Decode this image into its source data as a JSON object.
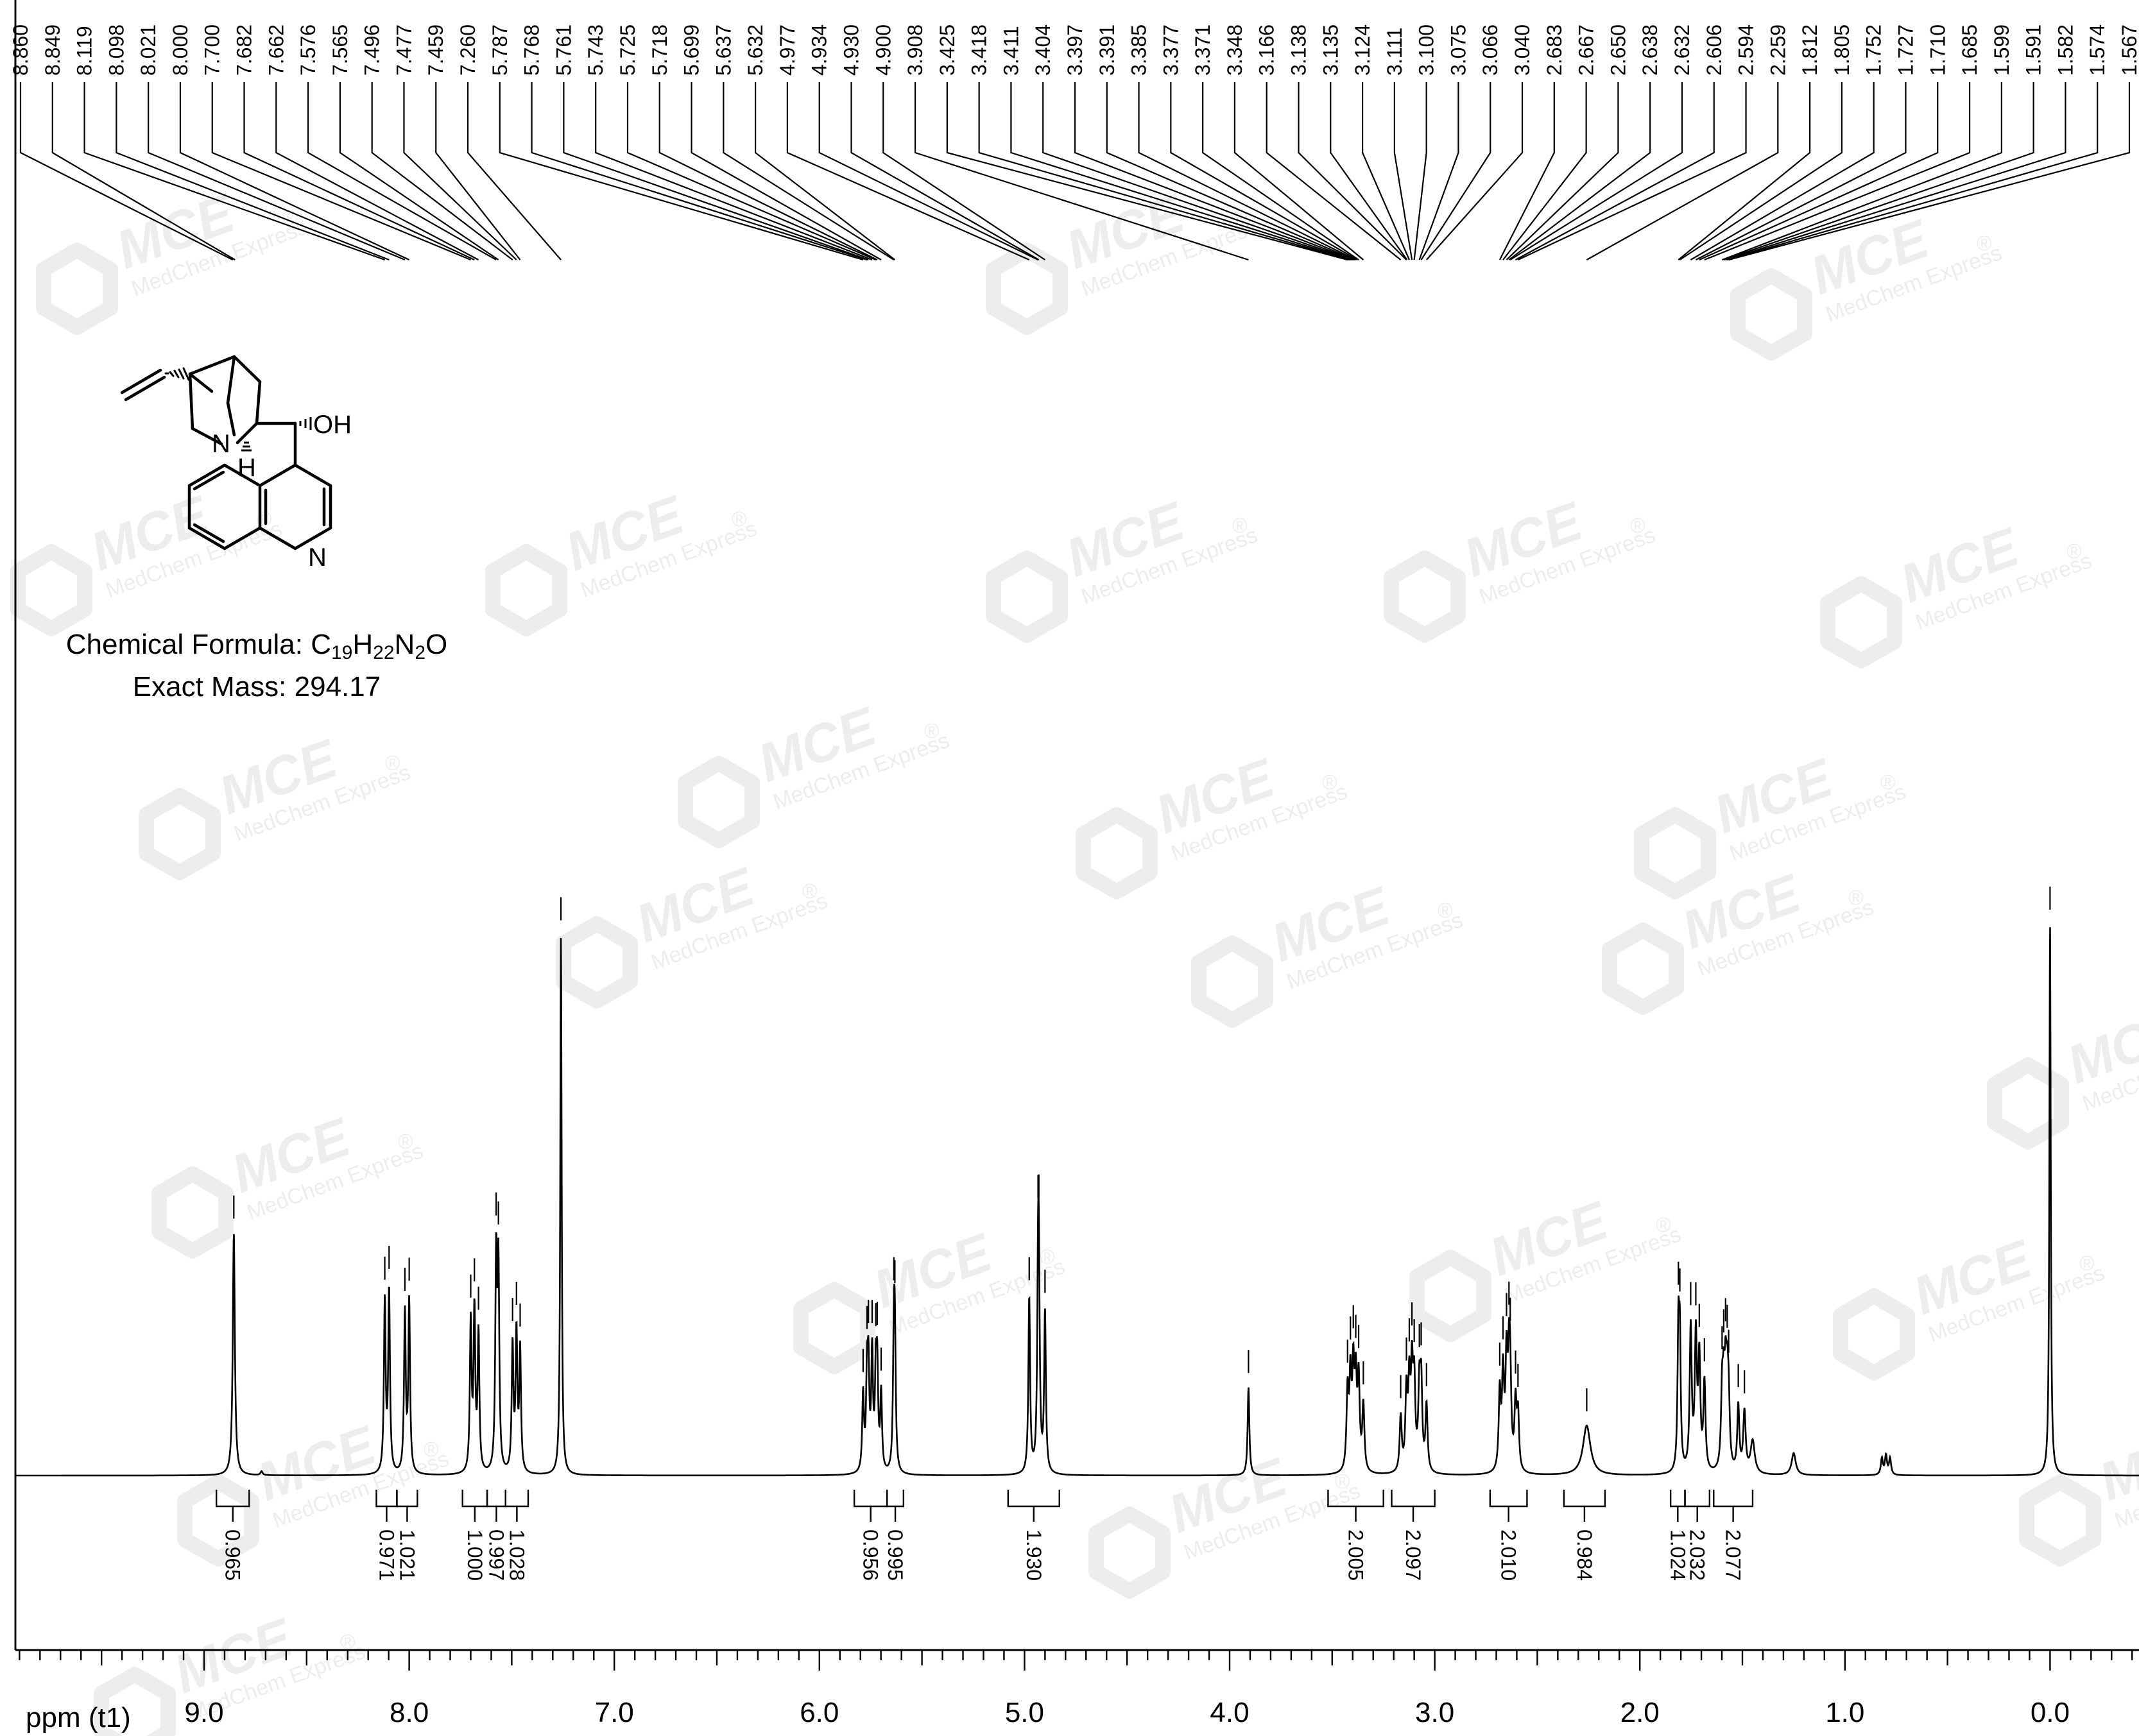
{
  "chart_data": {
    "type": "line",
    "title": "",
    "xlabel": "ppm (t1)",
    "ylabel": "",
    "xlim": [
      10.0,
      -0.45
    ],
    "x_ticks": [
      {
        "value": 9.0,
        "label": "9.0"
      },
      {
        "value": 8.0,
        "label": "8.0"
      },
      {
        "value": 7.0,
        "label": "7.0"
      },
      {
        "value": 6.0,
        "label": "6.0"
      },
      {
        "value": 5.0,
        "label": "5.0"
      },
      {
        "value": 4.0,
        "label": "4.0"
      },
      {
        "value": 3.0,
        "label": "3.0"
      },
      {
        "value": 2.0,
        "label": "2.0"
      },
      {
        "value": 1.0,
        "label": "1.0"
      },
      {
        "value": 0.0,
        "label": "0.0"
      }
    ],
    "peak_labels": [
      "8.860",
      "8.849",
      "8.119",
      "8.098",
      "8.021",
      "8.000",
      "7.700",
      "7.682",
      "7.662",
      "7.576",
      "7.565",
      "7.496",
      "7.477",
      "7.459",
      "7.260",
      "5.787",
      "5.768",
      "5.761",
      "5.743",
      "5.725",
      "5.718",
      "5.699",
      "5.637",
      "5.632",
      "4.977",
      "4.934",
      "4.930",
      "4.900",
      "3.908",
      "3.425",
      "3.418",
      "3.411",
      "3.404",
      "3.397",
      "3.391",
      "3.385",
      "3.377",
      "3.371",
      "3.348",
      "3.166",
      "3.138",
      "3.135",
      "3.124",
      "3.111",
      "3.100",
      "3.075",
      "3.066",
      "3.040",
      "2.683",
      "2.667",
      "2.650",
      "2.638",
      "2.632",
      "2.606",
      "2.594",
      "2.259",
      "1.812",
      "1.805",
      "1.752",
      "1.727",
      "1.710",
      "1.685",
      "1.599",
      "1.591",
      "1.582",
      "1.574",
      "1.567"
    ],
    "peaks": [
      {
        "ppm": 8.855,
        "height": 0.44,
        "width": 0.006
      },
      {
        "ppm": 8.72,
        "height": 0.007,
        "width": 0.006
      },
      {
        "ppm": 8.119,
        "height": 0.31,
        "width": 0.005
      },
      {
        "ppm": 8.098,
        "height": 0.33,
        "width": 0.005
      },
      {
        "ppm": 8.021,
        "height": 0.29,
        "width": 0.005
      },
      {
        "ppm": 8.0,
        "height": 0.31,
        "width": 0.005
      },
      {
        "ppm": 7.7,
        "height": 0.27,
        "width": 0.005
      },
      {
        "ppm": 7.682,
        "height": 0.29,
        "width": 0.005
      },
      {
        "ppm": 7.662,
        "height": 0.25,
        "width": 0.005
      },
      {
        "ppm": 7.576,
        "height": 0.38,
        "width": 0.005
      },
      {
        "ppm": 7.565,
        "height": 0.36,
        "width": 0.005
      },
      {
        "ppm": 7.496,
        "height": 0.23,
        "width": 0.005
      },
      {
        "ppm": 7.477,
        "height": 0.25,
        "width": 0.005
      },
      {
        "ppm": 7.459,
        "height": 0.22,
        "width": 0.005
      },
      {
        "ppm": 7.26,
        "height": 0.98,
        "width": 0.004
      },
      {
        "ppm": 5.787,
        "height": 0.14,
        "width": 0.005
      },
      {
        "ppm": 5.768,
        "height": 0.16,
        "width": 0.005
      },
      {
        "ppm": 5.761,
        "height": 0.17,
        "width": 0.005
      },
      {
        "ppm": 5.743,
        "height": 0.21,
        "width": 0.005
      },
      {
        "ppm": 5.725,
        "height": 0.16,
        "width": 0.005
      },
      {
        "ppm": 5.718,
        "height": 0.17,
        "width": 0.005
      },
      {
        "ppm": 5.699,
        "height": 0.14,
        "width": 0.005
      },
      {
        "ppm": 5.637,
        "height": 0.22,
        "width": 0.005
      },
      {
        "ppm": 5.632,
        "height": 0.21,
        "width": 0.005
      },
      {
        "ppm": 4.977,
        "height": 0.32,
        "width": 0.005
      },
      {
        "ppm": 4.934,
        "height": 0.29,
        "width": 0.005
      },
      {
        "ppm": 4.93,
        "height": 0.29,
        "width": 0.005
      },
      {
        "ppm": 4.9,
        "height": 0.29,
        "width": 0.005
      },
      {
        "ppm": 3.908,
        "height": 0.16,
        "width": 0.005
      },
      {
        "ppm": 3.425,
        "height": 0.14,
        "width": 0.006
      },
      {
        "ppm": 3.411,
        "height": 0.16,
        "width": 0.006
      },
      {
        "ppm": 3.397,
        "height": 0.17,
        "width": 0.006
      },
      {
        "ppm": 3.385,
        "height": 0.15,
        "width": 0.006
      },
      {
        "ppm": 3.371,
        "height": 0.16,
        "width": 0.006
      },
      {
        "ppm": 3.348,
        "height": 0.12,
        "width": 0.006
      },
      {
        "ppm": 3.166,
        "height": 0.1,
        "width": 0.006
      },
      {
        "ppm": 3.138,
        "height": 0.14,
        "width": 0.006
      },
      {
        "ppm": 3.124,
        "height": 0.15,
        "width": 0.006
      },
      {
        "ppm": 3.111,
        "height": 0.17,
        "width": 0.006
      },
      {
        "ppm": 3.1,
        "height": 0.15,
        "width": 0.006
      },
      {
        "ppm": 3.075,
        "height": 0.14,
        "width": 0.006
      },
      {
        "ppm": 3.066,
        "height": 0.15,
        "width": 0.006
      },
      {
        "ppm": 3.04,
        "height": 0.12,
        "width": 0.006
      },
      {
        "ppm": 2.683,
        "height": 0.14,
        "width": 0.006
      },
      {
        "ppm": 2.667,
        "height": 0.17,
        "width": 0.006
      },
      {
        "ppm": 2.65,
        "height": 0.19,
        "width": 0.006
      },
      {
        "ppm": 2.638,
        "height": 0.16,
        "width": 0.006
      },
      {
        "ppm": 2.632,
        "height": 0.14,
        "width": 0.006
      },
      {
        "ppm": 2.606,
        "height": 0.12,
        "width": 0.006
      },
      {
        "ppm": 2.594,
        "height": 0.1,
        "width": 0.006
      },
      {
        "ppm": 2.259,
        "height": 0.09,
        "width": 0.022
      },
      {
        "ppm": 1.812,
        "height": 0.24,
        "width": 0.005
      },
      {
        "ppm": 1.805,
        "height": 0.22,
        "width": 0.005
      },
      {
        "ppm": 1.752,
        "height": 0.26,
        "width": 0.006
      },
      {
        "ppm": 1.727,
        "height": 0.24,
        "width": 0.006
      },
      {
        "ppm": 1.71,
        "height": 0.2,
        "width": 0.006
      },
      {
        "ppm": 1.685,
        "height": 0.16,
        "width": 0.006
      },
      {
        "ppm": 1.599,
        "height": 0.13,
        "width": 0.006
      },
      {
        "ppm": 1.591,
        "height": 0.12,
        "width": 0.006
      },
      {
        "ppm": 1.582,
        "height": 0.14,
        "width": 0.006
      },
      {
        "ppm": 1.574,
        "height": 0.12,
        "width": 0.006
      },
      {
        "ppm": 1.567,
        "height": 0.11,
        "width": 0.006
      },
      {
        "ppm": 1.52,
        "height": 0.12,
        "width": 0.006
      },
      {
        "ppm": 1.49,
        "height": 0.11,
        "width": 0.007
      },
      {
        "ppm": 1.45,
        "height": 0.06,
        "width": 0.012
      },
      {
        "ppm": 1.25,
        "height": 0.04,
        "width": 0.012
      },
      {
        "ppm": 0.82,
        "height": 0.03,
        "width": 0.006
      },
      {
        "ppm": 0.8,
        "height": 0.035,
        "width": 0.006
      },
      {
        "ppm": 0.78,
        "height": 0.03,
        "width": 0.006
      },
      {
        "ppm": 0.0,
        "height": 1.0,
        "width": 0.004
      }
    ],
    "integrals": [
      {
        "from": 8.94,
        "to": 8.78,
        "value": "0.965"
      },
      {
        "from": 8.16,
        "to": 8.06,
        "value": "0.971"
      },
      {
        "from": 8.06,
        "to": 7.96,
        "value": "1.021"
      },
      {
        "from": 7.74,
        "to": 7.62,
        "value": "1.000"
      },
      {
        "from": 7.62,
        "to": 7.53,
        "value": "0.997"
      },
      {
        "from": 7.53,
        "to": 7.42,
        "value": "1.028"
      },
      {
        "from": 5.83,
        "to": 5.67,
        "value": "0.956"
      },
      {
        "from": 5.67,
        "to": 5.59,
        "value": "0.995"
      },
      {
        "from": 5.08,
        "to": 4.83,
        "value": "1.930"
      },
      {
        "from": 3.52,
        "to": 3.25,
        "value": "2.005"
      },
      {
        "from": 3.21,
        "to": 3.0,
        "value": "2.097"
      },
      {
        "from": 2.73,
        "to": 2.55,
        "value": "2.010"
      },
      {
        "from": 2.37,
        "to": 2.17,
        "value": "0.984"
      },
      {
        "from": 1.85,
        "to": 1.78,
        "value": "1.024"
      },
      {
        "from": 1.78,
        "to": 1.66,
        "value": "2.032"
      },
      {
        "from": 1.64,
        "to": 1.45,
        "value": "2.077"
      }
    ]
  },
  "compound": {
    "formula_label": "Chemical Formula:",
    "formula_c": "C",
    "formula_c_n": "19",
    "formula_h": "H",
    "formula_h_n": "22",
    "formula_n": "N",
    "formula_n_n": "2",
    "formula_o": "O",
    "mass_line": "Exact Mass: 294.17",
    "structure_labels": {
      "oh": "OH",
      "n_ring": "N",
      "h": "H",
      "n_quinoline": "N"
    }
  },
  "watermark": {
    "brand": "MCE",
    "sub": "MedChem Express",
    "reg": "®"
  }
}
